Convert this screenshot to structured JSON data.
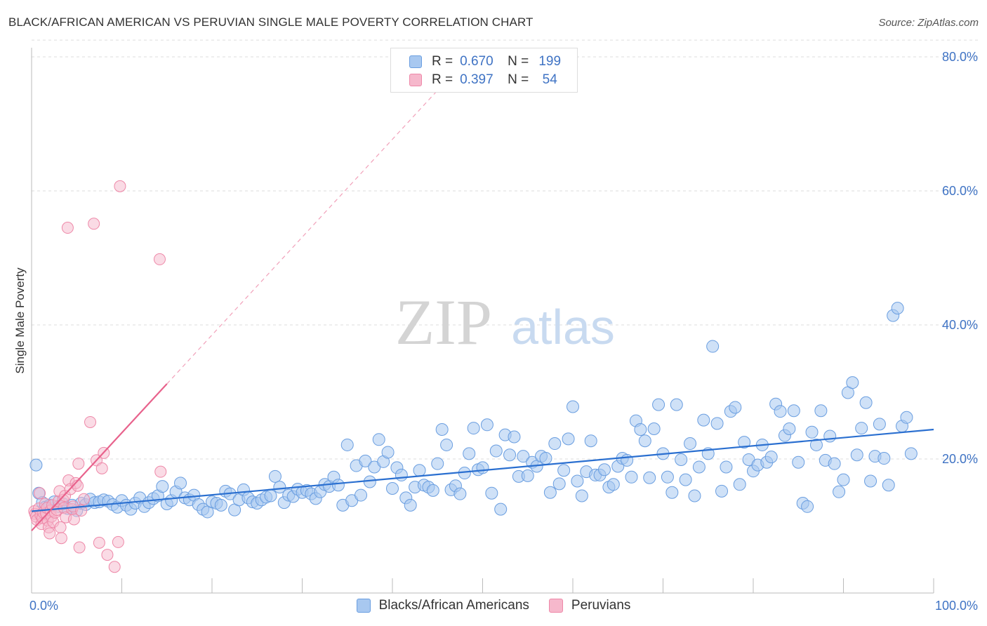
{
  "header": {
    "title": "BLACK/AFRICAN AMERICAN VS PERUVIAN SINGLE MALE POVERTY CORRELATION CHART",
    "source": "Source: ZipAtlas.com"
  },
  "watermark": {
    "zip": "ZIP",
    "atlas": "atlas"
  },
  "legend_top": {
    "rows": [
      {
        "r_label": "R =",
        "r_value": "0.670",
        "n_label": "N =",
        "n_value": "199",
        "color": "#a8c8f0"
      },
      {
        "r_label": "R =",
        "r_value": "0.397",
        "n_label": "N =",
        "n_value": "54",
        "color": "#f6b8cc"
      }
    ]
  },
  "legend_bottom": {
    "items": [
      {
        "label": "Blacks/African Americans",
        "color": "#a8c8f0"
      },
      {
        "label": "Peruvians",
        "color": "#f6b8cc"
      }
    ]
  },
  "chart_data": {
    "type": "scatter",
    "title": "BLACK/AFRICAN AMERICAN VS PERUVIAN SINGLE MALE POVERTY CORRELATION CHART",
    "xlabel": "",
    "ylabel": "Single Male Poverty",
    "xlim": [
      0,
      100
    ],
    "ylim": [
      0,
      80
    ],
    "x_tick_labels": [
      "0.0%",
      "100.0%"
    ],
    "y_ticks": [
      20,
      40,
      60,
      80
    ],
    "y_tick_labels": [
      "20.0%",
      "40.0%",
      "60.0%",
      "80.0%"
    ],
    "grid": true,
    "colors": {
      "blue_fill": "#a8c8f0",
      "blue_stroke": "#6a9ee0",
      "blue_line": "#2a6fd0",
      "pink_fill": "#f6b8cc",
      "pink_stroke": "#ee88a8",
      "pink_line": "#e8628c",
      "axis_text": "#3f73c4",
      "grid": "#dddddd"
    },
    "series": [
      {
        "name": "Blacks/African Americans",
        "R": 0.67,
        "N": 199,
        "trend": {
          "x": [
            0,
            100
          ],
          "y": [
            12.2,
            24.4
          ]
        },
        "points": [
          [
            0.5,
            19.1
          ],
          [
            0.8,
            14.9
          ],
          [
            1.2,
            13.5
          ],
          [
            1.5,
            12.8
          ],
          [
            2,
            13.1
          ],
          [
            2.5,
            13.6
          ],
          [
            3,
            12.9
          ],
          [
            3.5,
            13.3
          ],
          [
            4,
            12.6
          ],
          [
            4.5,
            13.1
          ],
          [
            5,
            12.3
          ],
          [
            5.5,
            13.4
          ],
          [
            6,
            13.2
          ],
          [
            6.5,
            14
          ],
          [
            7,
            13.5
          ],
          [
            7.5,
            13.6
          ],
          [
            8,
            13.9
          ],
          [
            8.5,
            13.7
          ],
          [
            9,
            13.2
          ],
          [
            9.5,
            12.8
          ],
          [
            10,
            13.8
          ],
          [
            10.5,
            13.1
          ],
          [
            11,
            12.5
          ],
          [
            11.5,
            13.4
          ],
          [
            12,
            14.2
          ],
          [
            12.5,
            12.9
          ],
          [
            13,
            13.5
          ],
          [
            13.5,
            14.1
          ],
          [
            14,
            14.5
          ],
          [
            14.5,
            15.9
          ],
          [
            15,
            13.3
          ],
          [
            15.5,
            13.8
          ],
          [
            16,
            15.1
          ],
          [
            16.5,
            16.4
          ],
          [
            17,
            14.2
          ],
          [
            17.5,
            13.9
          ],
          [
            18,
            14.6
          ],
          [
            18.5,
            13.2
          ],
          [
            19,
            12.5
          ],
          [
            19.5,
            12.1
          ],
          [
            20,
            13.6
          ],
          [
            20.5,
            13.4
          ],
          [
            21,
            13.1
          ],
          [
            21.5,
            15.2
          ],
          [
            22,
            14.8
          ],
          [
            22.5,
            12.4
          ],
          [
            23,
            13.9
          ],
          [
            23.5,
            15.4
          ],
          [
            24,
            14.2
          ],
          [
            24.5,
            13.6
          ],
          [
            25,
            13.4
          ],
          [
            25.5,
            13.9
          ],
          [
            26,
            14.3
          ],
          [
            26.5,
            14.5
          ],
          [
            27,
            17.4
          ],
          [
            27.5,
            15.8
          ],
          [
            28,
            13.5
          ],
          [
            28.5,
            14.6
          ],
          [
            29,
            14.4
          ],
          [
            29.5,
            15.5
          ],
          [
            30,
            15
          ],
          [
            30.5,
            15.3
          ],
          [
            31,
            14.8
          ],
          [
            31.5,
            14.1
          ],
          [
            32,
            15.1
          ],
          [
            32.5,
            16.2
          ],
          [
            33,
            15.9
          ],
          [
            33.5,
            17.3
          ],
          [
            34,
            16.1
          ],
          [
            34.5,
            13.1
          ],
          [
            35,
            22.1
          ],
          [
            35.5,
            13.8
          ],
          [
            36,
            19
          ],
          [
            36.5,
            14.6
          ],
          [
            37,
            19.7
          ],
          [
            37.5,
            16.6
          ],
          [
            38,
            18.8
          ],
          [
            38.5,
            22.9
          ],
          [
            39,
            19.6
          ],
          [
            39.5,
            21
          ],
          [
            40,
            15.6
          ],
          [
            40.5,
            18.7
          ],
          [
            41,
            17.6
          ],
          [
            41.5,
            14.2
          ],
          [
            42,
            13.1
          ],
          [
            42.5,
            15.8
          ],
          [
            43,
            18.3
          ],
          [
            43.5,
            16.1
          ],
          [
            44,
            15.8
          ],
          [
            44.5,
            15.3
          ],
          [
            45,
            19.3
          ],
          [
            45.5,
            24.4
          ],
          [
            46,
            22.1
          ],
          [
            46.5,
            15.4
          ],
          [
            47,
            16
          ],
          [
            47.5,
            14.8
          ],
          [
            48,
            17.9
          ],
          [
            48.5,
            20.8
          ],
          [
            49,
            24.6
          ],
          [
            49.5,
            18.4
          ],
          [
            50,
            18.7
          ],
          [
            50.5,
            25.1
          ],
          [
            51,
            14.9
          ],
          [
            51.5,
            21.2
          ],
          [
            52,
            12.5
          ],
          [
            52.5,
            23.6
          ],
          [
            53,
            20.6
          ],
          [
            53.5,
            23.3
          ],
          [
            54,
            17.4
          ],
          [
            54.5,
            20.4
          ],
          [
            55,
            17.5
          ],
          [
            55.5,
            19.5
          ],
          [
            56,
            18.9
          ],
          [
            56.5,
            20.4
          ],
          [
            57,
            20.1
          ],
          [
            57.5,
            15
          ],
          [
            58,
            22.3
          ],
          [
            58.5,
            16.3
          ],
          [
            59,
            18.3
          ],
          [
            59.5,
            23
          ],
          [
            60,
            27.8
          ],
          [
            60.5,
            16.7
          ],
          [
            61,
            14.5
          ],
          [
            61.5,
            18.1
          ],
          [
            62,
            22.7
          ],
          [
            62.5,
            17.6
          ],
          [
            63,
            17.6
          ],
          [
            63.5,
            18.4
          ],
          [
            64,
            15.8
          ],
          [
            64.5,
            16.2
          ],
          [
            65,
            18.9
          ],
          [
            65.5,
            20.1
          ],
          [
            66,
            19.8
          ],
          [
            66.5,
            17.3
          ],
          [
            67,
            25.7
          ],
          [
            67.5,
            24.4
          ],
          [
            68,
            22.7
          ],
          [
            68.5,
            17.2
          ],
          [
            69,
            24.5
          ],
          [
            69.5,
            28.1
          ],
          [
            70,
            20.8
          ],
          [
            70.5,
            17.3
          ],
          [
            71,
            15
          ],
          [
            71.5,
            28.1
          ],
          [
            72,
            19.9
          ],
          [
            72.5,
            16.9
          ],
          [
            73,
            22.3
          ],
          [
            73.5,
            14.5
          ],
          [
            74,
            18.8
          ],
          [
            74.5,
            25.8
          ],
          [
            75,
            20.8
          ],
          [
            75.5,
            36.8
          ],
          [
            76,
            25.3
          ],
          [
            76.5,
            15.2
          ],
          [
            77,
            18.8
          ],
          [
            77.5,
            27.1
          ],
          [
            78,
            27.7
          ],
          [
            78.5,
            16.2
          ],
          [
            79,
            22.5
          ],
          [
            79.5,
            19.9
          ],
          [
            80,
            18.2
          ],
          [
            80.5,
            19.1
          ],
          [
            81,
            22.1
          ],
          [
            81.5,
            19.5
          ],
          [
            82,
            20.3
          ],
          [
            82.5,
            28.2
          ],
          [
            83,
            27.1
          ],
          [
            83.5,
            23.5
          ],
          [
            84,
            24.5
          ],
          [
            84.5,
            27.2
          ],
          [
            85,
            19.5
          ],
          [
            85.5,
            13.4
          ],
          [
            86,
            12.9
          ],
          [
            86.5,
            24
          ],
          [
            87,
            22.1
          ],
          [
            87.5,
            27.2
          ],
          [
            88,
            19.8
          ],
          [
            88.5,
            23.4
          ],
          [
            89,
            19.3
          ],
          [
            89.5,
            15.1
          ],
          [
            90,
            16.9
          ],
          [
            90.5,
            29.9
          ],
          [
            91,
            31.4
          ],
          [
            91.5,
            20.6
          ],
          [
            92,
            24.6
          ],
          [
            92.5,
            28.4
          ],
          [
            93,
            16.7
          ],
          [
            93.5,
            20.4
          ],
          [
            94,
            25.2
          ],
          [
            94.5,
            20.1
          ],
          [
            95,
            16.1
          ],
          [
            95.5,
            41.4
          ],
          [
            96,
            42.5
          ],
          [
            96.5,
            24.9
          ],
          [
            97,
            26.2
          ],
          [
            97.5,
            20.8
          ]
        ]
      },
      {
        "name": "Peruvians",
        "R": 0.397,
        "N": 54,
        "trend": {
          "x": [
            0,
            15
          ],
          "y": [
            9.3,
            31.2
          ]
        },
        "trend_extension": {
          "x": [
            15,
            45
          ],
          "y": [
            31.2,
            75
          ]
        },
        "points": [
          [
            0.3,
            12.2
          ],
          [
            0.4,
            11.8
          ],
          [
            0.5,
            11.4
          ],
          [
            0.6,
            10.9
          ],
          [
            0.8,
            12.6
          ],
          [
            0.9,
            14.9
          ],
          [
            1,
            11.6
          ],
          [
            1.1,
            10.3
          ],
          [
            1.2,
            11.2
          ],
          [
            1.3,
            12
          ],
          [
            1.5,
            13.3
          ],
          [
            1.6,
            11.9
          ],
          [
            1.7,
            12.7
          ],
          [
            1.8,
            10.8
          ],
          [
            1.9,
            9.8
          ],
          [
            2,
            8.9
          ],
          [
            2.1,
            12.3
          ],
          [
            2.2,
            11.4
          ],
          [
            2.3,
            13.1
          ],
          [
            2.4,
            10.6
          ],
          [
            2.6,
            12
          ],
          [
            2.8,
            12.4
          ],
          [
            3,
            13.7
          ],
          [
            3.1,
            15.2
          ],
          [
            3.2,
            9.8
          ],
          [
            3.3,
            8.2
          ],
          [
            3.5,
            13.9
          ],
          [
            3.6,
            12.7
          ],
          [
            3.7,
            14.5
          ],
          [
            3.8,
            11.3
          ],
          [
            4,
            54.5
          ],
          [
            4.1,
            16.8
          ],
          [
            4.3,
            15.5
          ],
          [
            4.5,
            12.5
          ],
          [
            4.6,
            12.9
          ],
          [
            4.7,
            11
          ],
          [
            4.9,
            16.4
          ],
          [
            5.1,
            16
          ],
          [
            5.2,
            19.3
          ],
          [
            5.3,
            6.8
          ],
          [
            5.5,
            12.3
          ],
          [
            5.8,
            14
          ],
          [
            6.5,
            25.5
          ],
          [
            6.9,
            55.1
          ],
          [
            7.2,
            19.8
          ],
          [
            7.5,
            7.5
          ],
          [
            7.8,
            18.6
          ],
          [
            8,
            20.9
          ],
          [
            8.4,
            5.7
          ],
          [
            9.2,
            3.9
          ],
          [
            9.6,
            7.6
          ],
          [
            9.8,
            60.7
          ],
          [
            14.2,
            49.8
          ],
          [
            14.3,
            18.1
          ]
        ]
      }
    ]
  }
}
